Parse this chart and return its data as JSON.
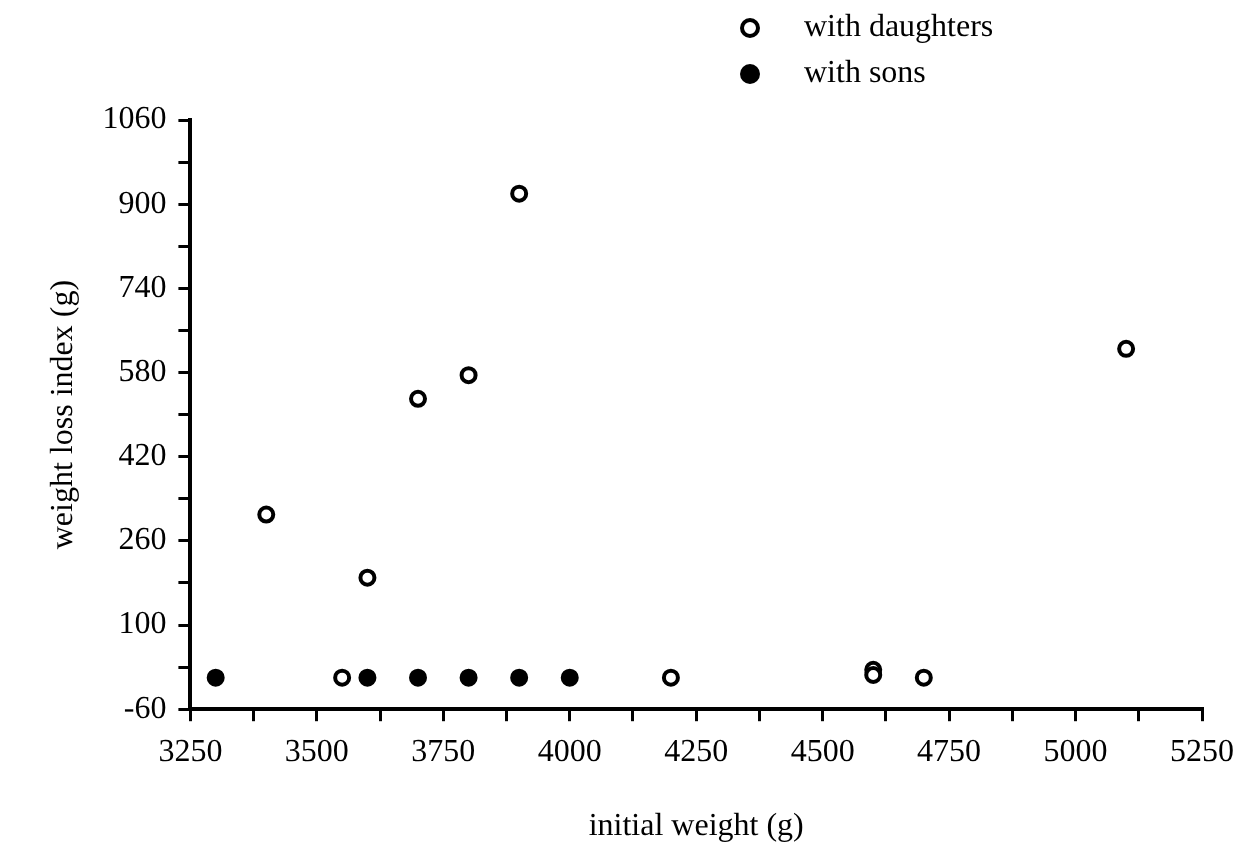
{
  "chart_data": {
    "type": "scatter",
    "xlabel": "initial weight (g)",
    "ylabel": "weight loss index (g)",
    "series": [
      {
        "name": "with daughters",
        "color": "#000000",
        "x": [
          3400,
          3550,
          3600,
          3700,
          3800,
          3900,
          4200,
          4600,
          4600,
          4700,
          5100
        ],
        "values": [
          310,
          0,
          190,
          530,
          575,
          920,
          0,
          15,
          5,
          0,
          625
        ]
      },
      {
        "name": "with sons",
        "color": "#000000",
        "x": [
          3300,
          3600,
          3700,
          3800,
          3900,
          4000
        ],
        "values": [
          0,
          0,
          0,
          0,
          0,
          0
        ]
      }
    ],
    "xlim": [
      3250,
      5250
    ],
    "xticks": [
      3250,
      {
        "value": 3375,
        "label": null
      },
      3500,
      {
        "value": 3625,
        "label": null
      },
      3750,
      {
        "value": 3875,
        "label": null
      },
      4000,
      {
        "value": 4125,
        "label": null
      },
      4250,
      {
        "value": 4375,
        "label": null
      },
      4500,
      {
        "value": 4625,
        "label": null
      },
      4750,
      {
        "value": 4875,
        "label": null
      },
      5000,
      {
        "value": 5125,
        "label": null
      },
      5250
    ],
    "ylim": [
      -60,
      1060
    ],
    "yticks": [
      -60,
      {
        "value": 20,
        "label": null
      },
      100,
      {
        "value": 180,
        "label": null
      },
      260,
      {
        "value": 340,
        "label": null
      },
      420,
      {
        "value": 500,
        "label": null
      },
      580,
      {
        "value": 660,
        "label": null
      },
      740,
      {
        "value": 820,
        "label": null
      },
      900,
      {
        "value": 980,
        "label": null
      },
      1060
    ],
    "grid": false,
    "legend": "top right",
    "marker": "circle"
  }
}
